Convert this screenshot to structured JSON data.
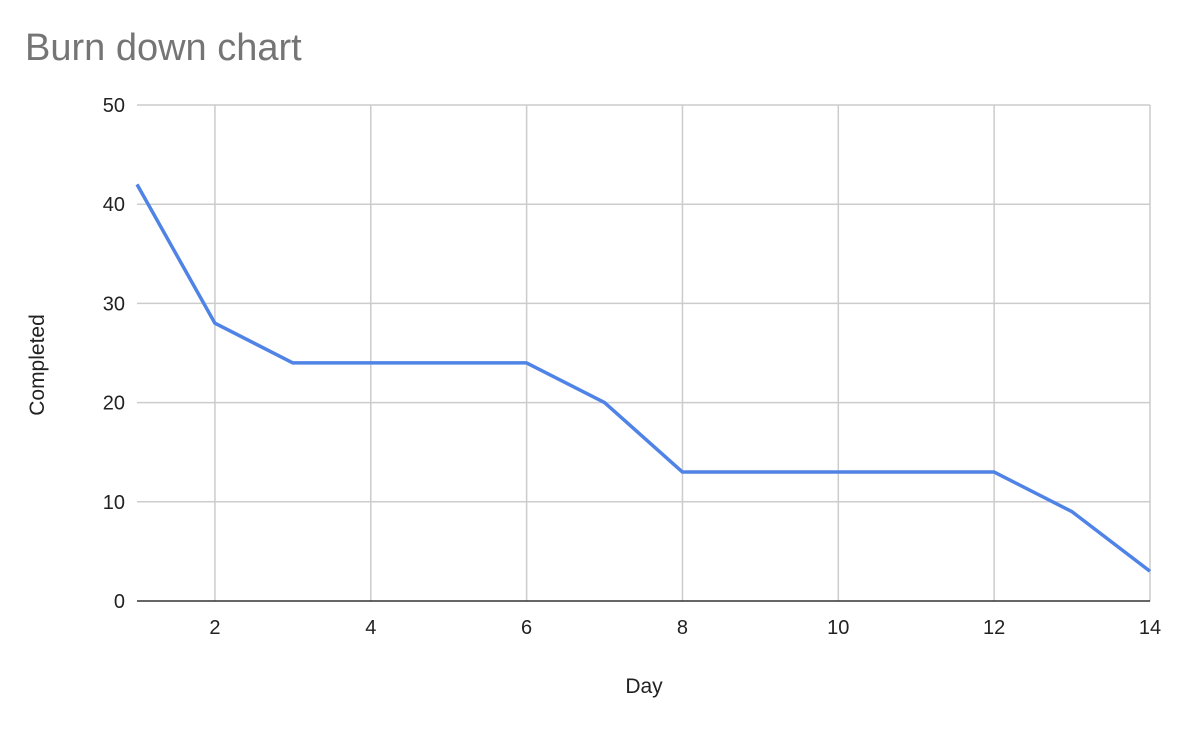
{
  "chart_data": {
    "type": "line",
    "title": "Burn down chart",
    "xlabel": "Day",
    "ylabel": "Completed",
    "xlim": [
      1,
      14
    ],
    "ylim": [
      0,
      50
    ],
    "x_ticks": [
      2,
      4,
      6,
      8,
      10,
      12,
      14
    ],
    "y_ticks": [
      0,
      10,
      20,
      30,
      40,
      50
    ],
    "grid": true,
    "legend": "none",
    "series": [
      {
        "color": "#5083e6",
        "x": [
          1,
          2,
          3,
          4,
          5,
          6,
          7,
          8,
          9,
          10,
          11,
          12,
          13,
          14
        ],
        "values": [
          42,
          28,
          24,
          24,
          24,
          24,
          20,
          13,
          13,
          13,
          13,
          13,
          9,
          3
        ]
      }
    ]
  }
}
